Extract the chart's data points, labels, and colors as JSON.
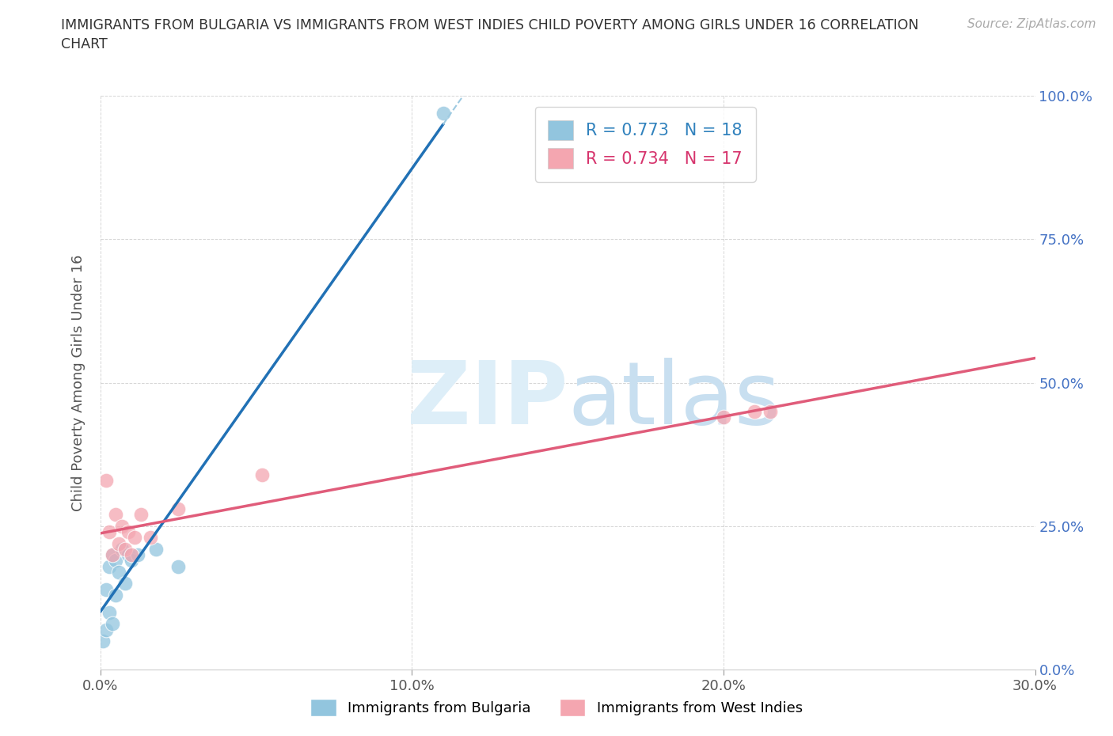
{
  "title": "IMMIGRANTS FROM BULGARIA VS IMMIGRANTS FROM WEST INDIES CHILD POVERTY AMONG GIRLS UNDER 16 CORRELATION\nCHART",
  "source": "Source: ZipAtlas.com",
  "ylabel": "Child Poverty Among Girls Under 16",
  "ylabel_ticks": [
    "0.0%",
    "25.0%",
    "50.0%",
    "75.0%",
    "100.0%"
  ],
  "xlabel_ticks": [
    "0.0%",
    "10.0%",
    "20.0%",
    "30.0%"
  ],
  "xlim": [
    0.0,
    0.3
  ],
  "ylim": [
    0.0,
    1.0
  ],
  "ytick_positions": [
    0.0,
    0.25,
    0.5,
    0.75,
    1.0
  ],
  "xtick_positions": [
    0.0,
    0.1,
    0.2,
    0.3
  ],
  "bulgaria_color": "#92c5de",
  "west_indies_color": "#f4a6b0",
  "bulgaria_R": 0.773,
  "bulgaria_N": 18,
  "west_indies_R": 0.734,
  "west_indies_N": 17,
  "legend_R_blue": "#3182bd",
  "legend_R_pink": "#d6336c",
  "bulgaria_x": [
    0.001,
    0.002,
    0.002,
    0.003,
    0.003,
    0.004,
    0.004,
    0.005,
    0.005,
    0.006,
    0.007,
    0.008,
    0.009,
    0.01,
    0.012,
    0.018,
    0.025,
    0.11
  ],
  "bulgaria_y": [
    0.05,
    0.07,
    0.14,
    0.1,
    0.18,
    0.08,
    0.2,
    0.13,
    0.19,
    0.17,
    0.21,
    0.15,
    0.2,
    0.19,
    0.2,
    0.21,
    0.18,
    0.97
  ],
  "west_indies_x": [
    0.002,
    0.003,
    0.004,
    0.005,
    0.006,
    0.007,
    0.008,
    0.009,
    0.01,
    0.011,
    0.013,
    0.016,
    0.025,
    0.052,
    0.2,
    0.21,
    0.215
  ],
  "west_indies_y": [
    0.33,
    0.24,
    0.2,
    0.27,
    0.22,
    0.25,
    0.21,
    0.24,
    0.2,
    0.23,
    0.27,
    0.23,
    0.28,
    0.34,
    0.44,
    0.45,
    0.45
  ]
}
